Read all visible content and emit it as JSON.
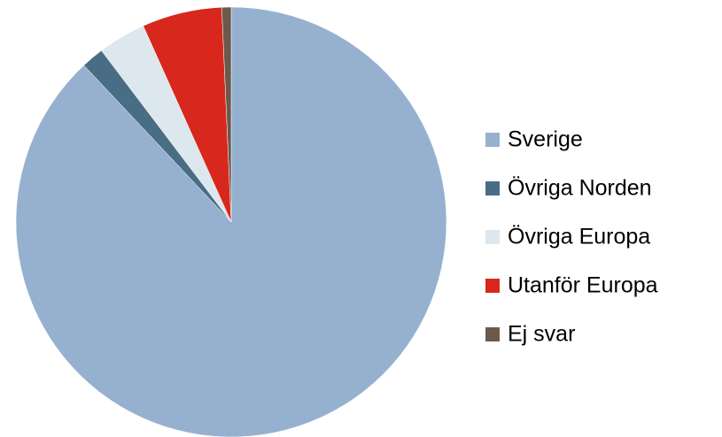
{
  "chart_data": {
    "type": "pie",
    "categories": [
      "Sverige",
      "Övriga Norden",
      "Övriga Europa",
      "Utanför Europa",
      "Ej svar"
    ],
    "values": [
      88,
      1.7,
      3.6,
      6.0,
      0.7
    ],
    "colors": [
      "#95b1cf",
      "#4a6d86",
      "#dde7ee",
      "#d8281d",
      "#6b594b"
    ],
    "legend": "right"
  }
}
